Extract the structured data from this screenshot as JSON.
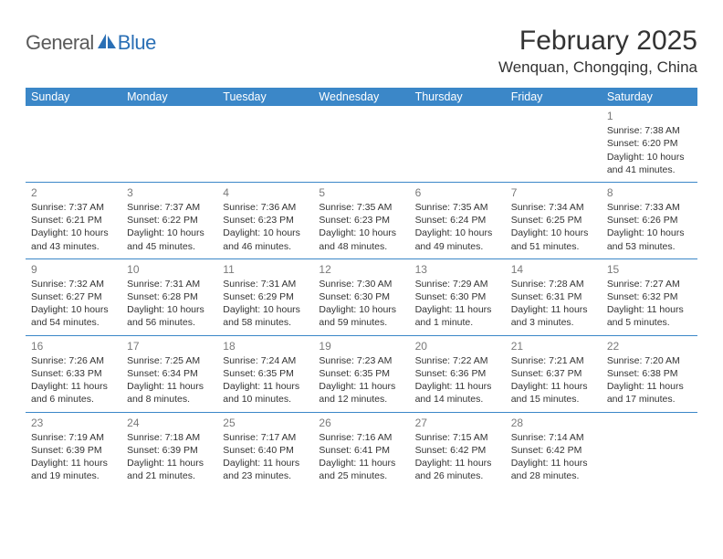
{
  "logo": {
    "general": "General",
    "blue": "Blue"
  },
  "title": "February 2025",
  "location": "Wenquan, Chongqing, China",
  "colors": {
    "header_bg": "#3b87c8",
    "header_text": "#ffffff",
    "rule": "#3b87c8",
    "daynum": "#7a7a7a",
    "body_text": "#333333",
    "logo_gray": "#5a5a5a",
    "logo_blue": "#2a6fb5",
    "background": "#ffffff"
  },
  "weekdays": [
    "Sunday",
    "Monday",
    "Tuesday",
    "Wednesday",
    "Thursday",
    "Friday",
    "Saturday"
  ],
  "weeks": [
    [
      null,
      null,
      null,
      null,
      null,
      null,
      {
        "d": "1",
        "sr": "Sunrise: 7:38 AM",
        "ss": "Sunset: 6:20 PM",
        "dl1": "Daylight: 10 hours",
        "dl2": "and 41 minutes."
      }
    ],
    [
      {
        "d": "2",
        "sr": "Sunrise: 7:37 AM",
        "ss": "Sunset: 6:21 PM",
        "dl1": "Daylight: 10 hours",
        "dl2": "and 43 minutes."
      },
      {
        "d": "3",
        "sr": "Sunrise: 7:37 AM",
        "ss": "Sunset: 6:22 PM",
        "dl1": "Daylight: 10 hours",
        "dl2": "and 45 minutes."
      },
      {
        "d": "4",
        "sr": "Sunrise: 7:36 AM",
        "ss": "Sunset: 6:23 PM",
        "dl1": "Daylight: 10 hours",
        "dl2": "and 46 minutes."
      },
      {
        "d": "5",
        "sr": "Sunrise: 7:35 AM",
        "ss": "Sunset: 6:23 PM",
        "dl1": "Daylight: 10 hours",
        "dl2": "and 48 minutes."
      },
      {
        "d": "6",
        "sr": "Sunrise: 7:35 AM",
        "ss": "Sunset: 6:24 PM",
        "dl1": "Daylight: 10 hours",
        "dl2": "and 49 minutes."
      },
      {
        "d": "7",
        "sr": "Sunrise: 7:34 AM",
        "ss": "Sunset: 6:25 PM",
        "dl1": "Daylight: 10 hours",
        "dl2": "and 51 minutes."
      },
      {
        "d": "8",
        "sr": "Sunrise: 7:33 AM",
        "ss": "Sunset: 6:26 PM",
        "dl1": "Daylight: 10 hours",
        "dl2": "and 53 minutes."
      }
    ],
    [
      {
        "d": "9",
        "sr": "Sunrise: 7:32 AM",
        "ss": "Sunset: 6:27 PM",
        "dl1": "Daylight: 10 hours",
        "dl2": "and 54 minutes."
      },
      {
        "d": "10",
        "sr": "Sunrise: 7:31 AM",
        "ss": "Sunset: 6:28 PM",
        "dl1": "Daylight: 10 hours",
        "dl2": "and 56 minutes."
      },
      {
        "d": "11",
        "sr": "Sunrise: 7:31 AM",
        "ss": "Sunset: 6:29 PM",
        "dl1": "Daylight: 10 hours",
        "dl2": "and 58 minutes."
      },
      {
        "d": "12",
        "sr": "Sunrise: 7:30 AM",
        "ss": "Sunset: 6:30 PM",
        "dl1": "Daylight: 10 hours",
        "dl2": "and 59 minutes."
      },
      {
        "d": "13",
        "sr": "Sunrise: 7:29 AM",
        "ss": "Sunset: 6:30 PM",
        "dl1": "Daylight: 11 hours",
        "dl2": "and 1 minute."
      },
      {
        "d": "14",
        "sr": "Sunrise: 7:28 AM",
        "ss": "Sunset: 6:31 PM",
        "dl1": "Daylight: 11 hours",
        "dl2": "and 3 minutes."
      },
      {
        "d": "15",
        "sr": "Sunrise: 7:27 AM",
        "ss": "Sunset: 6:32 PM",
        "dl1": "Daylight: 11 hours",
        "dl2": "and 5 minutes."
      }
    ],
    [
      {
        "d": "16",
        "sr": "Sunrise: 7:26 AM",
        "ss": "Sunset: 6:33 PM",
        "dl1": "Daylight: 11 hours",
        "dl2": "and 6 minutes."
      },
      {
        "d": "17",
        "sr": "Sunrise: 7:25 AM",
        "ss": "Sunset: 6:34 PM",
        "dl1": "Daylight: 11 hours",
        "dl2": "and 8 minutes."
      },
      {
        "d": "18",
        "sr": "Sunrise: 7:24 AM",
        "ss": "Sunset: 6:35 PM",
        "dl1": "Daylight: 11 hours",
        "dl2": "and 10 minutes."
      },
      {
        "d": "19",
        "sr": "Sunrise: 7:23 AM",
        "ss": "Sunset: 6:35 PM",
        "dl1": "Daylight: 11 hours",
        "dl2": "and 12 minutes."
      },
      {
        "d": "20",
        "sr": "Sunrise: 7:22 AM",
        "ss": "Sunset: 6:36 PM",
        "dl1": "Daylight: 11 hours",
        "dl2": "and 14 minutes."
      },
      {
        "d": "21",
        "sr": "Sunrise: 7:21 AM",
        "ss": "Sunset: 6:37 PM",
        "dl1": "Daylight: 11 hours",
        "dl2": "and 15 minutes."
      },
      {
        "d": "22",
        "sr": "Sunrise: 7:20 AM",
        "ss": "Sunset: 6:38 PM",
        "dl1": "Daylight: 11 hours",
        "dl2": "and 17 minutes."
      }
    ],
    [
      {
        "d": "23",
        "sr": "Sunrise: 7:19 AM",
        "ss": "Sunset: 6:39 PM",
        "dl1": "Daylight: 11 hours",
        "dl2": "and 19 minutes."
      },
      {
        "d": "24",
        "sr": "Sunrise: 7:18 AM",
        "ss": "Sunset: 6:39 PM",
        "dl1": "Daylight: 11 hours",
        "dl2": "and 21 minutes."
      },
      {
        "d": "25",
        "sr": "Sunrise: 7:17 AM",
        "ss": "Sunset: 6:40 PM",
        "dl1": "Daylight: 11 hours",
        "dl2": "and 23 minutes."
      },
      {
        "d": "26",
        "sr": "Sunrise: 7:16 AM",
        "ss": "Sunset: 6:41 PM",
        "dl1": "Daylight: 11 hours",
        "dl2": "and 25 minutes."
      },
      {
        "d": "27",
        "sr": "Sunrise: 7:15 AM",
        "ss": "Sunset: 6:42 PM",
        "dl1": "Daylight: 11 hours",
        "dl2": "and 26 minutes."
      },
      {
        "d": "28",
        "sr": "Sunrise: 7:14 AM",
        "ss": "Sunset: 6:42 PM",
        "dl1": "Daylight: 11 hours",
        "dl2": "and 28 minutes."
      },
      null
    ]
  ]
}
